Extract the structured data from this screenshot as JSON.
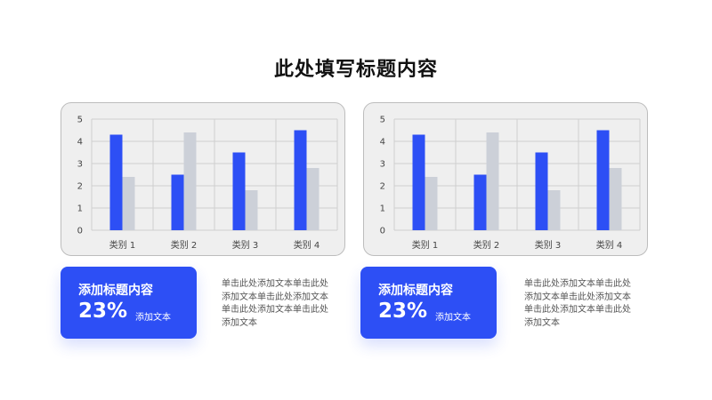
{
  "page": {
    "title": "此处填写标题内容"
  },
  "colors": {
    "primary": "#2d4ff5",
    "secondary": "#ccd0d8",
    "panel_bg": "#efefef",
    "grid": "#cfcfcf"
  },
  "chart_data": [
    {
      "type": "bar",
      "categories": [
        "类别 1",
        "类别 2",
        "类别 3",
        "类别 4"
      ],
      "series": [
        {
          "values": [
            4.3,
            2.5,
            3.5,
            4.5
          ]
        },
        {
          "values": [
            2.4,
            4.4,
            1.8,
            2.8
          ]
        }
      ],
      "yticks": [
        "0",
        "1",
        "2",
        "3",
        "4",
        "5"
      ],
      "ylim": [
        0,
        5
      ],
      "grid": true
    },
    {
      "type": "bar",
      "categories": [
        "类别 1",
        "类别 2",
        "类别 3",
        "类别 4"
      ],
      "series": [
        {
          "values": [
            4.3,
            2.5,
            3.5,
            4.5
          ]
        },
        {
          "values": [
            2.4,
            4.4,
            1.8,
            2.8
          ]
        }
      ],
      "yticks": [
        "0",
        "1",
        "2",
        "3",
        "4",
        "5"
      ],
      "ylim": [
        0,
        5
      ],
      "grid": true
    }
  ],
  "cards": [
    {
      "title": "添加标题内容",
      "value": "23%",
      "note": "添加文本",
      "description": "单击此处添加文本单击此处添加文本单击此处添加文本单击此处添加文本单击此处添加文本"
    },
    {
      "title": "添加标题内容",
      "value": "23%",
      "note": "添加文本",
      "description": "单击此处添加文本单击此处添加文本单击此处添加文本单击此处添加文本单击此处添加文本"
    }
  ]
}
